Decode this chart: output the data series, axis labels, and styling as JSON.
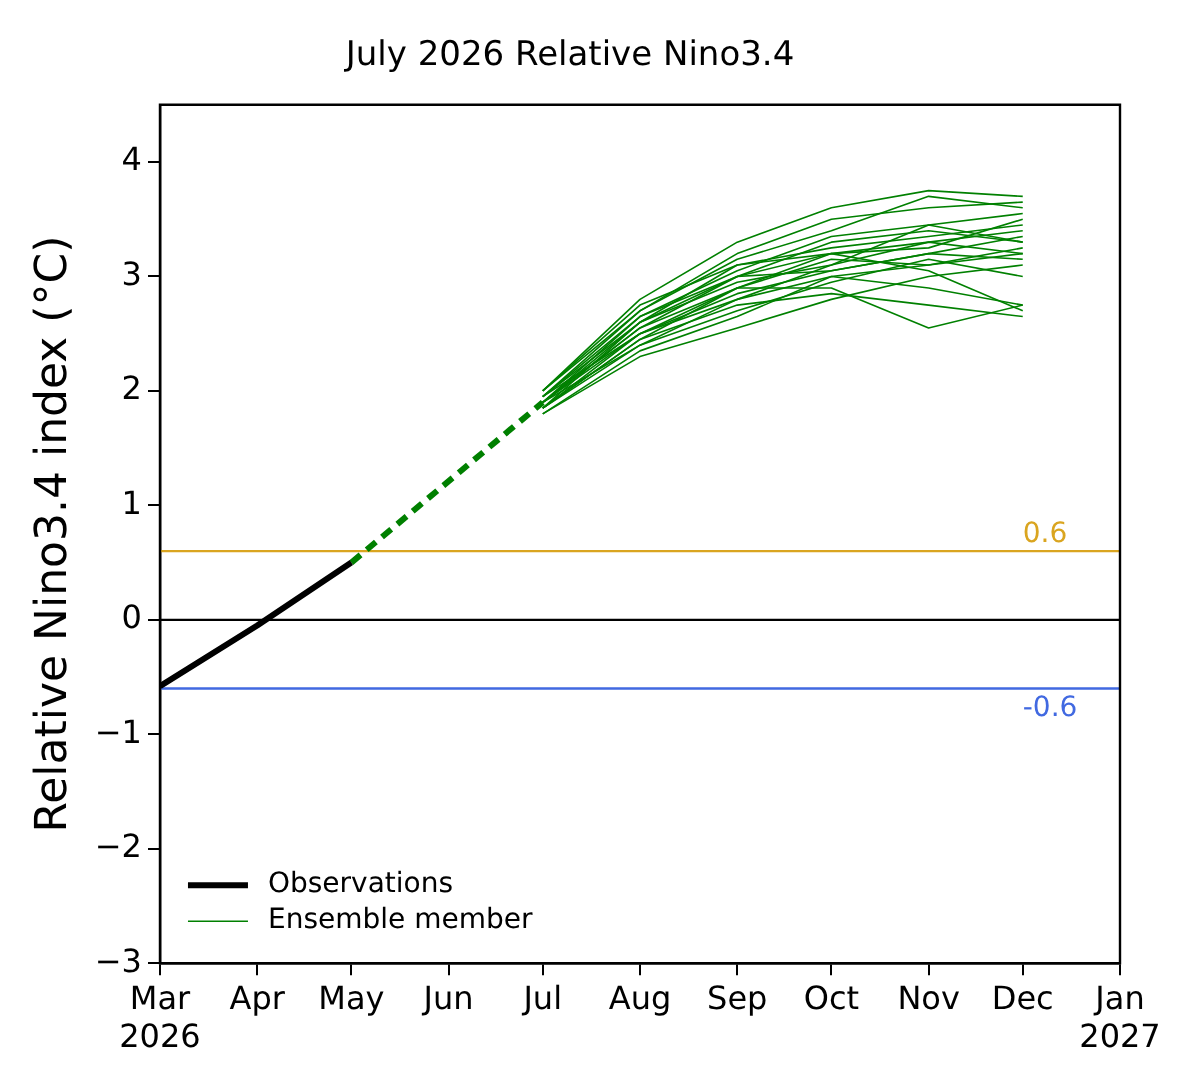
{
  "chart_data": {
    "type": "line",
    "title": "July 2026 Relative Nino3.4",
    "ylabel": "Relative Nino3.4 index (°C)",
    "xlim": [
      "2026-03",
      "2027-01"
    ],
    "xticks": [
      {
        "value": "2026-03",
        "label": "Mar\n2026"
      },
      {
        "value": "2026-04",
        "label": "Apr"
      },
      {
        "value": "2026-05",
        "label": "May"
      },
      {
        "value": "2026-06",
        "label": "Jun"
      },
      {
        "value": "2026-07",
        "label": "Jul"
      },
      {
        "value": "2026-08",
        "label": "Aug"
      },
      {
        "value": "2026-09",
        "label": "Sep"
      },
      {
        "value": "2026-10",
        "label": "Oct"
      },
      {
        "value": "2026-11",
        "label": "Nov"
      },
      {
        "value": "2026-12",
        "label": "Dec"
      },
      {
        "value": "2027-01",
        "label": "Jan\n2027"
      }
    ],
    "ylim": [
      -3,
      4.5
    ],
    "yticks": [
      -3,
      -2,
      -1,
      0,
      1,
      2,
      3,
      4
    ],
    "grid": false,
    "legend": "bottom left",
    "marker": "none",
    "ref_lines": [
      {
        "axis": "y",
        "value": 0.6,
        "label": "0.6",
        "color": "#daa520"
      },
      {
        "axis": "y",
        "value": 0,
        "label": null,
        "color": "#000000"
      },
      {
        "axis": "y",
        "value": -0.6,
        "label": "-0.6",
        "color": "#4169e1"
      }
    ],
    "series": [
      {
        "name": "Observations",
        "color": "#000000",
        "x": [
          "2026-03",
          "2026-04",
          "2026-05"
        ],
        "values": [
          -0.58,
          -0.05,
          0.5
        ]
      },
      {
        "color": "#008000",
        "line_style": "dashed",
        "x": [
          "2026-05",
          "2026-07"
        ],
        "values": [
          0.5,
          1.9
        ]
      },
      {
        "name": "Ensemble member",
        "color": "#008000",
        "x": [
          "2026-07",
          "2026-08",
          "2026-09",
          "2026-10",
          "2026-11",
          "2026-12"
        ],
        "values": [
          1.95,
          2.6,
          3.0,
          3.2,
          3.3,
          3.4
        ]
      },
      {
        "color": "#008000",
        "x": [
          "2026-07",
          "2026-08",
          "2026-09",
          "2026-10",
          "2026-11",
          "2026-12"
        ],
        "values": [
          1.85,
          2.4,
          2.8,
          3.0,
          3.1,
          3.2
        ]
      },
      {
        "color": "#008000",
        "x": [
          "2026-07",
          "2026-08",
          "2026-09",
          "2026-10",
          "2026-11",
          "2026-12"
        ],
        "values": [
          2.0,
          2.8,
          3.3,
          3.6,
          3.75,
          3.7
        ]
      },
      {
        "color": "#008000",
        "x": [
          "2026-07",
          "2026-08",
          "2026-09",
          "2026-10",
          "2026-11",
          "2026-12"
        ],
        "values": [
          1.9,
          2.5,
          2.9,
          2.9,
          2.55,
          2.75
        ]
      },
      {
        "color": "#008000",
        "x": [
          "2026-07",
          "2026-08",
          "2026-09",
          "2026-10",
          "2026-11",
          "2026-12"
        ],
        "values": [
          1.8,
          2.3,
          2.55,
          2.8,
          3.0,
          3.1
        ]
      },
      {
        "color": "#008000",
        "x": [
          "2026-07",
          "2026-08",
          "2026-09",
          "2026-10",
          "2026-11",
          "2026-12"
        ],
        "values": [
          1.95,
          2.7,
          3.2,
          3.5,
          3.6,
          3.65
        ]
      },
      {
        "color": "#008000",
        "x": [
          "2026-07",
          "2026-08",
          "2026-09",
          "2026-10",
          "2026-11",
          "2026-12"
        ],
        "values": [
          1.9,
          2.55,
          3.0,
          3.3,
          3.4,
          3.3
        ]
      },
      {
        "color": "#008000",
        "x": [
          "2026-07",
          "2026-08",
          "2026-09",
          "2026-10",
          "2026-11",
          "2026-12"
        ],
        "values": [
          1.85,
          2.45,
          2.75,
          2.85,
          2.75,
          2.65
        ]
      },
      {
        "color": "#008000",
        "x": [
          "2026-07",
          "2026-08",
          "2026-09",
          "2026-10",
          "2026-11",
          "2026-12"
        ],
        "values": [
          2.0,
          2.75,
          3.1,
          3.2,
          3.25,
          3.5
        ]
      },
      {
        "color": "#008000",
        "x": [
          "2026-07",
          "2026-08",
          "2026-09",
          "2026-10",
          "2026-11",
          "2026-12"
        ],
        "values": [
          1.9,
          2.6,
          2.95,
          3.1,
          3.3,
          3.2
        ]
      },
      {
        "color": "#008000",
        "x": [
          "2026-07",
          "2026-08",
          "2026-09",
          "2026-10",
          "2026-11",
          "2026-12"
        ],
        "values": [
          1.85,
          2.5,
          2.85,
          3.05,
          3.2,
          3.35
        ]
      },
      {
        "color": "#008000",
        "x": [
          "2026-07",
          "2026-08",
          "2026-09",
          "2026-10",
          "2026-11",
          "2026-12"
        ],
        "values": [
          1.95,
          2.65,
          3.05,
          3.35,
          3.45,
          3.55
        ]
      },
      {
        "color": "#008000",
        "x": [
          "2026-07",
          "2026-08",
          "2026-09",
          "2026-10",
          "2026-11",
          "2026-12"
        ],
        "values": [
          1.9,
          2.4,
          2.7,
          2.95,
          3.15,
          3.0
        ]
      },
      {
        "color": "#008000",
        "x": [
          "2026-07",
          "2026-08",
          "2026-09",
          "2026-10",
          "2026-11",
          "2026-12"
        ],
        "values": [
          1.8,
          2.35,
          2.65,
          3.0,
          2.9,
          2.75
        ]
      },
      {
        "color": "#008000",
        "x": [
          "2026-07",
          "2026-08",
          "2026-09",
          "2026-10",
          "2026-11",
          "2026-12"
        ],
        "values": [
          2.0,
          2.7,
          3.15,
          3.4,
          3.7,
          3.6
        ]
      },
      {
        "color": "#008000",
        "x": [
          "2026-07",
          "2026-08",
          "2026-09",
          "2026-10",
          "2026-11",
          "2026-12"
        ],
        "values": [
          1.9,
          2.55,
          2.9,
          3.15,
          3.1,
          3.25
        ]
      },
      {
        "color": "#008000",
        "x": [
          "2026-07",
          "2026-08",
          "2026-09",
          "2026-10",
          "2026-11",
          "2026-12"
        ],
        "values": [
          1.85,
          2.6,
          3.1,
          3.25,
          3.35,
          3.45
        ]
      },
      {
        "color": "#008000",
        "x": [
          "2026-07",
          "2026-08",
          "2026-09",
          "2026-10",
          "2026-11",
          "2026-12"
        ],
        "values": [
          1.95,
          2.5,
          2.8,
          3.1,
          3.45,
          3.3
        ]
      },
      {
        "color": "#008000",
        "x": [
          "2026-07",
          "2026-08",
          "2026-09",
          "2026-10",
          "2026-11",
          "2026-12"
        ],
        "values": [
          1.9,
          2.65,
          3.0,
          3.05,
          3.2,
          3.15
        ]
      },
      {
        "color": "#008000",
        "x": [
          "2026-07",
          "2026-08",
          "2026-09",
          "2026-10",
          "2026-11",
          "2026-12"
        ],
        "values": [
          1.85,
          2.45,
          2.9,
          3.2,
          3.05,
          2.7
        ]
      }
    ]
  }
}
